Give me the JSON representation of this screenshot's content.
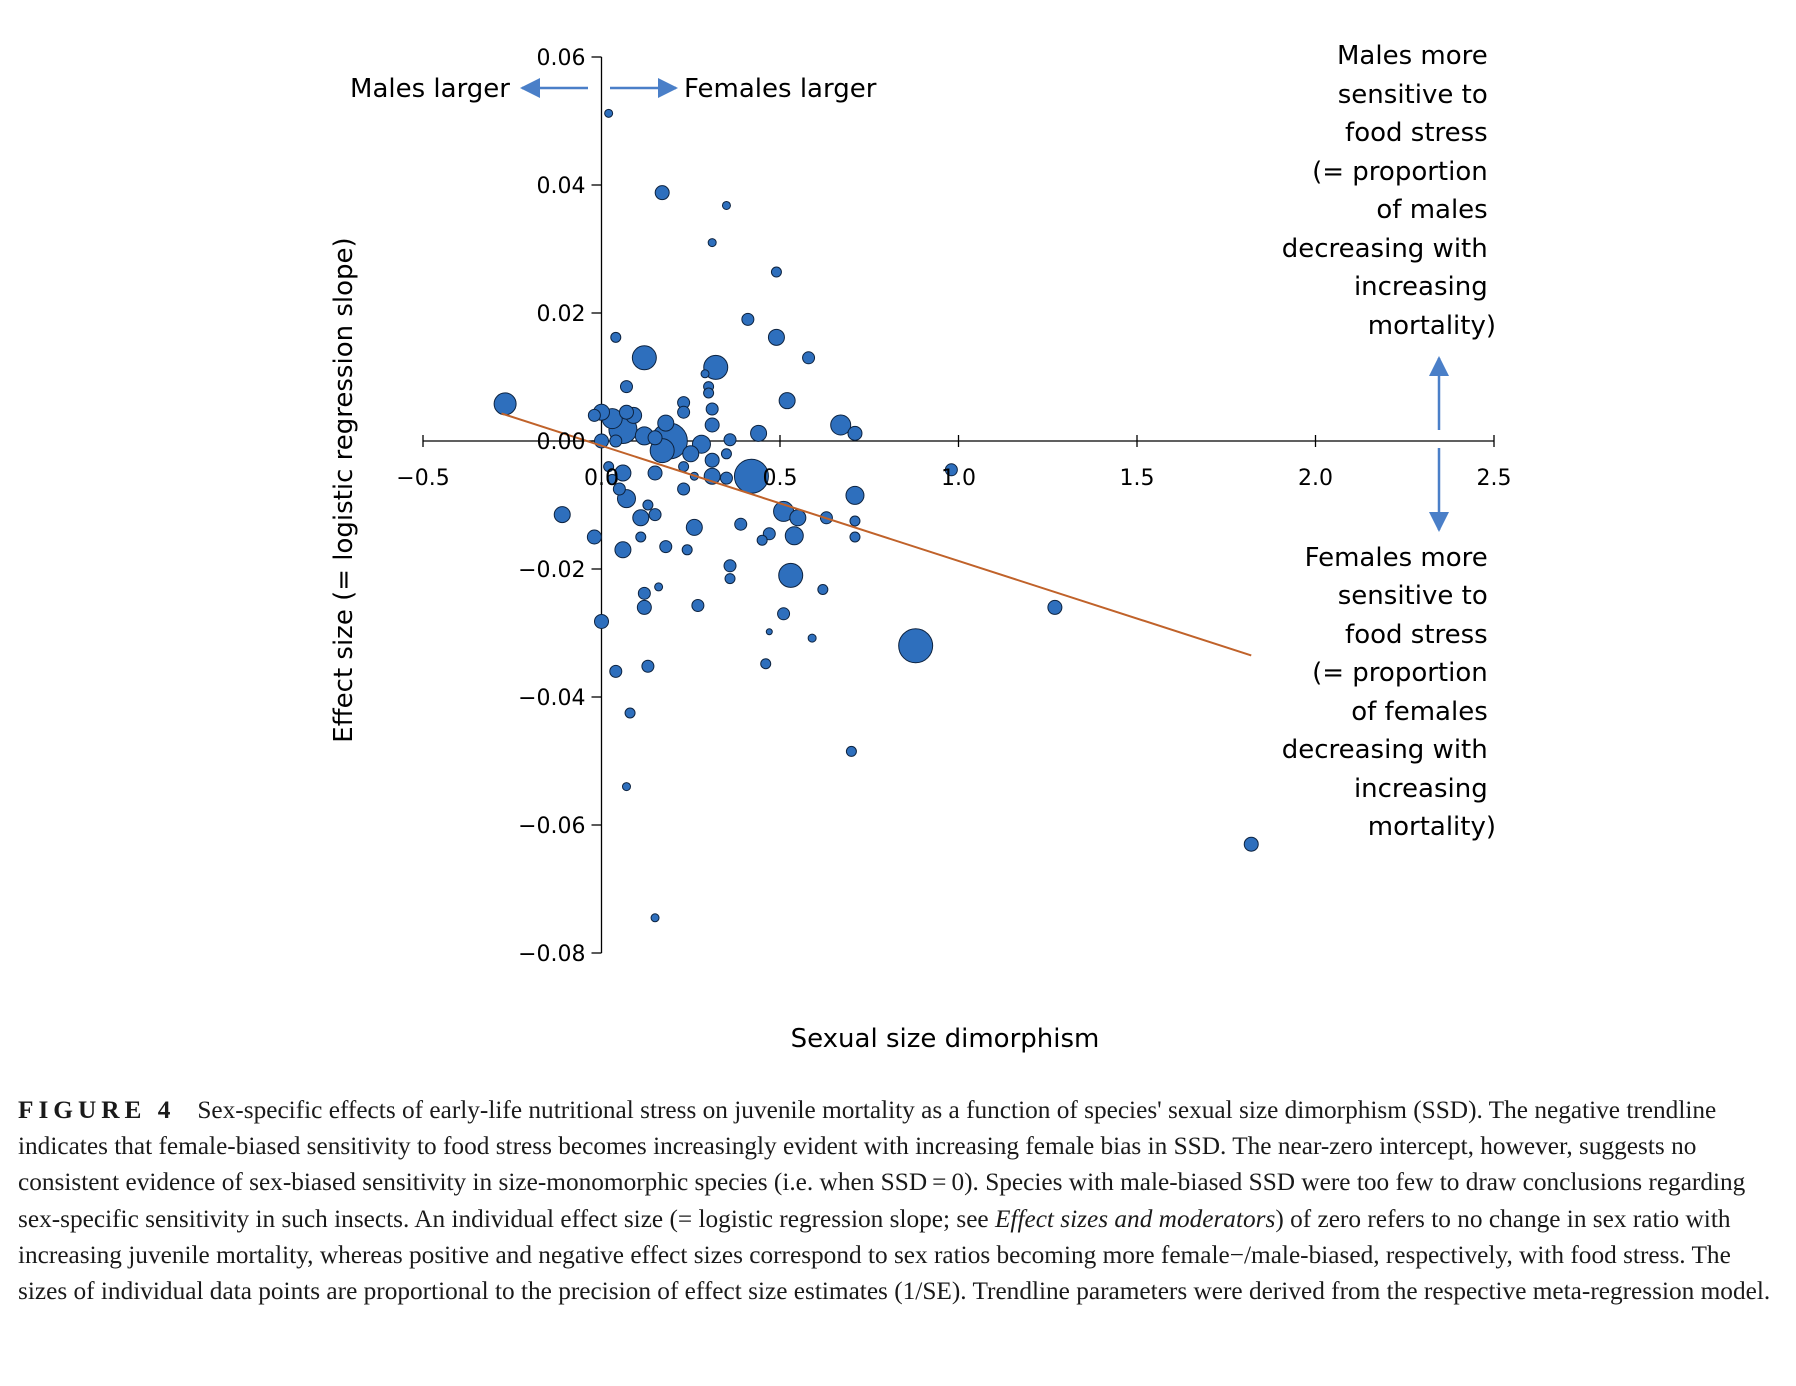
{
  "chart_data": {
    "type": "scatter",
    "xlabel": "Sexual size dimorphism",
    "ylabel": "Effect size (= logistic regression slope)",
    "xlim": [
      -0.5,
      2.5
    ],
    "ylim": [
      -0.08,
      0.06
    ],
    "x_ticks": [
      -0.5,
      0.0,
      0.5,
      1.0,
      1.5,
      2.0,
      2.5
    ],
    "x_tick_labels": [
      "−0.5",
      "0.0",
      "0.5",
      "1.0",
      "1.5",
      "2.0",
      "2.5"
    ],
    "y_ticks": [
      0.06,
      0.04,
      0.02,
      0.0,
      -0.02,
      -0.04,
      -0.06,
      -0.08
    ],
    "y_tick_labels": [
      "0.06",
      "0.04",
      "0.02",
      "0.00",
      "−0.02",
      "−0.04",
      "−0.06",
      "−0.08"
    ],
    "grid": false,
    "point_color": "#2e6fbd",
    "trend_color": "#c0622a",
    "arrow_color": "#4a7fc8",
    "trendline": {
      "x": [
        -0.28,
        1.82
      ],
      "y": [
        0.0043,
        -0.0335
      ]
    },
    "annotations": {
      "males_larger": "Males larger",
      "females_larger": "Females larger",
      "males_sensitive": [
        "Males more",
        "sensitive to",
        "food stress",
        "(= proportion",
        "of males",
        "decreasing with",
        "increasing",
        "mortality)"
      ],
      "females_sensitive": [
        "Females more",
        "sensitive to",
        "food stress",
        "(= proportion",
        "of females",
        "decreasing with",
        "increasing",
        "mortality)"
      ]
    },
    "points": [
      {
        "x": 0.02,
        "y": 0.0512,
        "r": 4
      },
      {
        "x": 0.17,
        "y": 0.0388,
        "r": 7
      },
      {
        "x": 0.35,
        "y": 0.0368,
        "r": 4
      },
      {
        "x": 0.31,
        "y": 0.031,
        "r": 4
      },
      {
        "x": 0.49,
        "y": 0.0264,
        "r": 5
      },
      {
        "x": 0.41,
        "y": 0.019,
        "r": 6
      },
      {
        "x": 0.04,
        "y": 0.0162,
        "r": 5
      },
      {
        "x": 0.49,
        "y": 0.0162,
        "r": 8
      },
      {
        "x": 0.58,
        "y": 0.013,
        "r": 6
      },
      {
        "x": 0.12,
        "y": 0.013,
        "r": 12
      },
      {
        "x": 0.32,
        "y": 0.0115,
        "r": 12
      },
      {
        "x": 0.29,
        "y": 0.0105,
        "r": 4
      },
      {
        "x": 0.07,
        "y": 0.0085,
        "r": 6
      },
      {
        "x": 0.3,
        "y": 0.0085,
        "r": 5
      },
      {
        "x": 0.3,
        "y": 0.0075,
        "r": 5
      },
      {
        "x": 0.52,
        "y": 0.0063,
        "r": 8
      },
      {
        "x": 0.23,
        "y": 0.006,
        "r": 6
      },
      {
        "x": -0.27,
        "y": 0.0058,
        "r": 11
      },
      {
        "x": 0.31,
        "y": 0.005,
        "r": 6
      },
      {
        "x": 0.23,
        "y": 0.0045,
        "r": 6
      },
      {
        "x": 0.0,
        "y": 0.0045,
        "r": 8
      },
      {
        "x": -0.02,
        "y": 0.004,
        "r": 6
      },
      {
        "x": 0.07,
        "y": 0.0045,
        "r": 7
      },
      {
        "x": 0.03,
        "y": 0.0035,
        "r": 10
      },
      {
        "x": 0.09,
        "y": 0.004,
        "r": 8
      },
      {
        "x": 0.18,
        "y": 0.0028,
        "r": 8
      },
      {
        "x": 0.31,
        "y": 0.0025,
        "r": 7
      },
      {
        "x": 0.67,
        "y": 0.0025,
        "r": 10
      },
      {
        "x": 0.06,
        "y": 0.0018,
        "r": 14
      },
      {
        "x": 0.71,
        "y": 0.0012,
        "r": 7
      },
      {
        "x": 0.44,
        "y": 0.0012,
        "r": 8
      },
      {
        "x": 0.12,
        "y": 0.0008,
        "r": 9
      },
      {
        "x": 0.15,
        "y": 0.0005,
        "r": 7
      },
      {
        "x": 0.0,
        "y": 0.0,
        "r": 7
      },
      {
        "x": 0.04,
        "y": 0.0,
        "r": 6
      },
      {
        "x": 0.19,
        "y": 0.0,
        "r": 18
      },
      {
        "x": 0.28,
        "y": -0.0005,
        "r": 9
      },
      {
        "x": 0.36,
        "y": 0.0002,
        "r": 6
      },
      {
        "x": 0.17,
        "y": -0.0015,
        "r": 12
      },
      {
        "x": 0.25,
        "y": -0.002,
        "r": 8
      },
      {
        "x": 0.35,
        "y": -0.002,
        "r": 5
      },
      {
        "x": 0.31,
        "y": -0.003,
        "r": 7
      },
      {
        "x": 0.02,
        "y": -0.004,
        "r": 5
      },
      {
        "x": 0.23,
        "y": -0.004,
        "r": 5
      },
      {
        "x": 0.15,
        "y": -0.005,
        "r": 7
      },
      {
        "x": 0.06,
        "y": -0.005,
        "r": 8
      },
      {
        "x": 0.26,
        "y": -0.0055,
        "r": 4
      },
      {
        "x": 0.31,
        "y": -0.0055,
        "r": 8
      },
      {
        "x": 0.35,
        "y": -0.0058,
        "r": 6
      },
      {
        "x": 0.42,
        "y": -0.0055,
        "r": 17
      },
      {
        "x": 0.03,
        "y": -0.006,
        "r": 5
      },
      {
        "x": 0.98,
        "y": -0.0045,
        "r": 6
      },
      {
        "x": 0.05,
        "y": -0.0075,
        "r": 6
      },
      {
        "x": 0.23,
        "y": -0.0075,
        "r": 6
      },
      {
        "x": 0.07,
        "y": -0.009,
        "r": 9
      },
      {
        "x": 0.71,
        "y": -0.0085,
        "r": 9
      },
      {
        "x": 0.13,
        "y": -0.01,
        "r": 5
      },
      {
        "x": 0.51,
        "y": -0.011,
        "r": 10
      },
      {
        "x": -0.11,
        "y": -0.0115,
        "r": 8
      },
      {
        "x": 0.15,
        "y": -0.0115,
        "r": 6
      },
      {
        "x": 0.11,
        "y": -0.012,
        "r": 8
      },
      {
        "x": 0.55,
        "y": -0.012,
        "r": 8
      },
      {
        "x": 0.63,
        "y": -0.012,
        "r": 6
      },
      {
        "x": 0.71,
        "y": -0.0125,
        "r": 5
      },
      {
        "x": 0.39,
        "y": -0.013,
        "r": 6
      },
      {
        "x": 0.26,
        "y": -0.0135,
        "r": 8
      },
      {
        "x": 0.47,
        "y": -0.0145,
        "r": 6
      },
      {
        "x": 0.54,
        "y": -0.0148,
        "r": 9
      },
      {
        "x": 0.71,
        "y": -0.015,
        "r": 5
      },
      {
        "x": -0.02,
        "y": -0.015,
        "r": 7
      },
      {
        "x": 0.11,
        "y": -0.015,
        "r": 5
      },
      {
        "x": 0.45,
        "y": -0.0155,
        "r": 5
      },
      {
        "x": 0.18,
        "y": -0.0165,
        "r": 6
      },
      {
        "x": 0.06,
        "y": -0.017,
        "r": 8
      },
      {
        "x": 0.24,
        "y": -0.017,
        "r": 5
      },
      {
        "x": 0.36,
        "y": -0.0195,
        "r": 6
      },
      {
        "x": 0.53,
        "y": -0.021,
        "r": 12
      },
      {
        "x": 0.36,
        "y": -0.0215,
        "r": 5
      },
      {
        "x": 0.16,
        "y": -0.0228,
        "r": 4
      },
      {
        "x": 0.12,
        "y": -0.0238,
        "r": 6
      },
      {
        "x": 0.62,
        "y": -0.0232,
        "r": 5
      },
      {
        "x": 0.27,
        "y": -0.0257,
        "r": 6
      },
      {
        "x": 0.12,
        "y": -0.026,
        "r": 7
      },
      {
        "x": 0.51,
        "y": -0.027,
        "r": 6
      },
      {
        "x": 1.27,
        "y": -0.026,
        "r": 7
      },
      {
        "x": 0.0,
        "y": -0.0282,
        "r": 7
      },
      {
        "x": 0.47,
        "y": -0.0298,
        "r": 3
      },
      {
        "x": 0.59,
        "y": -0.0308,
        "r": 4
      },
      {
        "x": 0.88,
        "y": -0.032,
        "r": 17
      },
      {
        "x": 0.46,
        "y": -0.0348,
        "r": 5
      },
      {
        "x": 0.13,
        "y": -0.0352,
        "r": 6
      },
      {
        "x": 0.04,
        "y": -0.036,
        "r": 6
      },
      {
        "x": 0.08,
        "y": -0.0425,
        "r": 5
      },
      {
        "x": 0.7,
        "y": -0.0485,
        "r": 5
      },
      {
        "x": 0.07,
        "y": -0.054,
        "r": 4
      },
      {
        "x": 1.82,
        "y": -0.063,
        "r": 7
      },
      {
        "x": 0.15,
        "y": -0.0745,
        "r": 4
      }
    ]
  },
  "caption": {
    "label": "FIGURE 4",
    "text_1": "Sex-specific effects of early-life nutritional stress on juvenile mortality as a function of species' sexual size dimorphism (SSD). The negative trendline indicates that female-biased sensitivity to food stress becomes increasingly evident with increasing female bias in SSD. The near-zero intercept, however, suggests no consistent evidence of sex-biased sensitivity in size-monomorphic species (i.e. when SSD = 0). Species with male-biased SSD were too few to draw conclusions regarding sex-specific sensitivity in such insects. An individual effect size (= logistic regression slope; see ",
    "italic": "Effect sizes and moderators",
    "text_2": ") of zero refers to no change in sex ratio with increasing juvenile mortality, whereas positive and negative effect sizes correspond to sex ratios becoming more female−/male-biased, respectively, with food stress. The sizes of individual data points are proportional to the precision of effect size estimates (1/SE). Trendline parameters were derived from the respective meta-regression model."
  }
}
